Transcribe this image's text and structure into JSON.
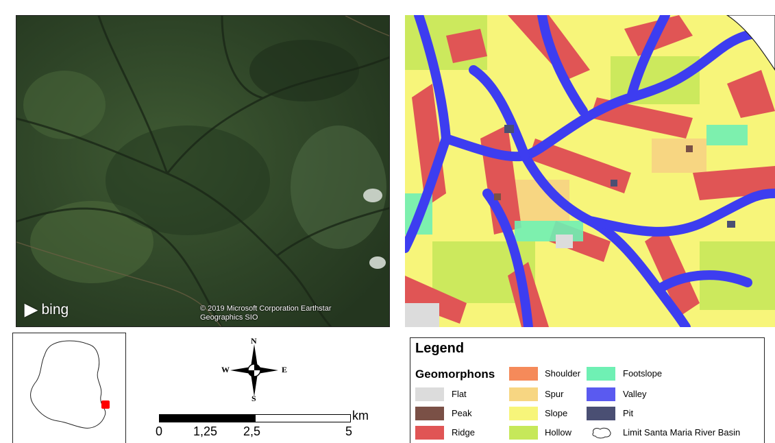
{
  "imagery": {
    "provider": "bing",
    "attribution": "© 2019 Microsoft Corporation Earthstar Geographics SIO"
  },
  "compass": {
    "n": "N",
    "s": "S",
    "e": "E",
    "w": "W"
  },
  "scalebar": {
    "unit": "km",
    "ticks": [
      "0",
      "1,25",
      "2,5",
      "5"
    ]
  },
  "legend": {
    "title": "Legend",
    "subtitle": "Geomorphons",
    "items": [
      {
        "label": "Flat",
        "color": "#dcdcdc"
      },
      {
        "label": "Peak",
        "color": "#7a5046"
      },
      {
        "label": "Ridge",
        "color": "#e05555"
      },
      {
        "label": "Shoulder",
        "color": "#f58a5a"
      },
      {
        "label": "Spur",
        "color": "#f7d682"
      },
      {
        "label": "Slope",
        "color": "#f7f57a"
      },
      {
        "label": "Hollow",
        "color": "#c6e85a"
      },
      {
        "label": "Footslope",
        "color": "#6ff0b4"
      },
      {
        "label": "Valley",
        "color": "#5a5af0"
      },
      {
        "label": "Pit",
        "color": "#4a4f73"
      }
    ],
    "basin_label": "Limit Santa Maria River Basin"
  }
}
